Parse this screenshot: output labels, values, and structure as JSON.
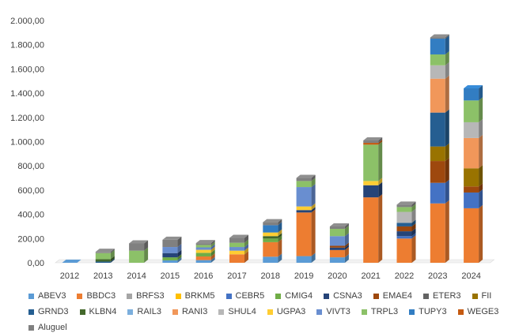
{
  "chart_data": {
    "type": "bar",
    "stacked": true,
    "style": "3d-column",
    "title": "",
    "xlabel": "",
    "ylabel": "",
    "ylim": [
      0,
      2000
    ],
    "ytick_step": 200,
    "ytick_labels": [
      "0,00",
      "200,00",
      "400,00",
      "600,00",
      "800,00",
      "1.000,00",
      "1.200,00",
      "1.400,00",
      "1.600,00",
      "1.800,00",
      "2.000,00"
    ],
    "grid": false,
    "legend_position": "bottom",
    "categories": [
      "2012",
      "2013",
      "2014",
      "2015",
      "2016",
      "2017",
      "2018",
      "2019",
      "2020",
      "2021",
      "2022",
      "2023",
      "2024"
    ],
    "series": [
      {
        "name": "ABEV3",
        "color": "#5B9BD5",
        "values": [
          0,
          0,
          0,
          20,
          22,
          0,
          50,
          55,
          45,
          0,
          0,
          0,
          0
        ]
      },
      {
        "name": "BBDC3",
        "color": "#ED7D31",
        "values": [
          0,
          0,
          0,
          0,
          30,
          70,
          120,
          360,
          60,
          540,
          200,
          490,
          450
        ]
      },
      {
        "name": "BRFS3",
        "color": "#A5A5A5",
        "values": [
          0,
          0,
          0,
          0,
          0,
          0,
          0,
          0,
          0,
          0,
          0,
          0,
          0
        ]
      },
      {
        "name": "BRKM5",
        "color": "#FFC000",
        "values": [
          0,
          0,
          0,
          0,
          0,
          0,
          0,
          0,
          0,
          0,
          0,
          0,
          0
        ]
      },
      {
        "name": "CEBR5",
        "color": "#4472C4",
        "values": [
          0,
          0,
          0,
          0,
          0,
          0,
          0,
          0,
          0,
          0,
          20,
          170,
          130
        ]
      },
      {
        "name": "CMIG4",
        "color": "#70AD47",
        "values": [
          0,
          0,
          0,
          25,
          30,
          0,
          30,
          0,
          0,
          0,
          0,
          0,
          0
        ]
      },
      {
        "name": "CSNA3",
        "color": "#264478",
        "values": [
          0,
          0,
          0,
          35,
          0,
          0,
          0,
          20,
          20,
          100,
          40,
          0,
          0
        ]
      },
      {
        "name": "EMAE4",
        "color": "#9E480E",
        "values": [
          0,
          0,
          0,
          0,
          0,
          0,
          0,
          0,
          15,
          0,
          40,
          180,
          50
        ]
      },
      {
        "name": "ETER3",
        "color": "#636363",
        "values": [
          0,
          0,
          0,
          0,
          0,
          0,
          0,
          0,
          0,
          0,
          0,
          0,
          0
        ]
      },
      {
        "name": "FII",
        "color": "#997300",
        "values": [
          0,
          0,
          0,
          0,
          0,
          0,
          0,
          0,
          0,
          0,
          0,
          120,
          150
        ]
      },
      {
        "name": "GRND3",
        "color": "#255E91",
        "values": [
          0,
          10,
          0,
          0,
          0,
          0,
          0,
          0,
          0,
          0,
          30,
          280,
          0
        ]
      },
      {
        "name": "KLBN4",
        "color": "#43682B",
        "values": [
          0,
          20,
          0,
          0,
          0,
          0,
          20,
          0,
          0,
          0,
          0,
          0,
          0
        ]
      },
      {
        "name": "RAIL3",
        "color": "#7CAFDD",
        "values": [
          0,
          0,
          0,
          0,
          0,
          0,
          0,
          0,
          0,
          0,
          0,
          0,
          0
        ]
      },
      {
        "name": "RANI3",
        "color": "#F1975A",
        "values": [
          0,
          0,
          0,
          0,
          0,
          0,
          0,
          0,
          0,
          0,
          0,
          280,
          250
        ]
      },
      {
        "name": "SHUL4",
        "color": "#B7B7B7",
        "values": [
          0,
          0,
          0,
          0,
          0,
          0,
          0,
          0,
          0,
          0,
          90,
          110,
          130
        ]
      },
      {
        "name": "UGPA3",
        "color": "#FFCD33",
        "values": [
          0,
          0,
          0,
          0,
          25,
          30,
          30,
          30,
          0,
          35,
          0,
          0,
          0
        ]
      },
      {
        "name": "VIVT3",
        "color": "#698ED0",
        "values": [
          0,
          0,
          0,
          50,
          20,
          30,
          0,
          160,
          80,
          0,
          0,
          0,
          0
        ]
      },
      {
        "name": "TRPL3",
        "color": "#8CC168",
        "values": [
          0,
          50,
          100,
          0,
          20,
          35,
          0,
          50,
          60,
          300,
          40,
          90,
          180
        ]
      },
      {
        "name": "TUPY3",
        "color": "#327DC2",
        "values": [
          0,
          0,
          0,
          0,
          0,
          0,
          60,
          0,
          0,
          0,
          0,
          130,
          100
        ]
      },
      {
        "name": "WEGE3",
        "color": "#C55A11",
        "values": [
          0,
          0,
          0,
          0,
          0,
          0,
          0,
          0,
          0,
          15,
          0,
          0,
          0
        ]
      },
      {
        "name": "Aluguel",
        "color": "#808080",
        "values": [
          0,
          10,
          60,
          60,
          15,
          40,
          25,
          25,
          20,
          20,
          20,
          10,
          0
        ]
      }
    ]
  }
}
